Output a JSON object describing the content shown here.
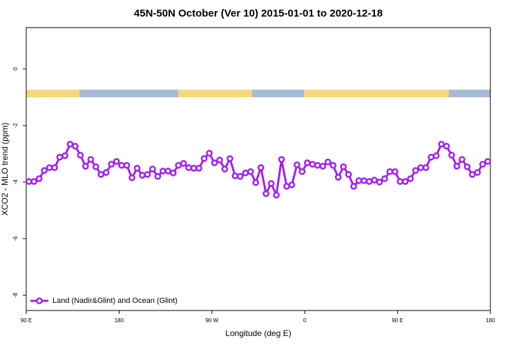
{
  "chart_data": {
    "type": "line",
    "title": "45N-50N October (Ver 10)   2015-01-01 to 2020-12-18",
    "x_label": "Longitude (deg E)",
    "y_label": "XCO2 - MLO trend (ppm)",
    "xlim": [
      90,
      540
    ],
    "xticks": [
      {
        "value": 90,
        "label": "90 E"
      },
      180,
      {
        "value": 270,
        "label": "90 W"
      },
      {
        "value": 360,
        "label": "0"
      },
      {
        "value": 450,
        "label": "90 E"
      },
      {
        "value": 540,
        "label": "180"
      }
    ],
    "ylim": [
      -8.54,
      1.46
    ],
    "yticks": [
      0,
      -2,
      -4,
      -6,
      -8
    ],
    "legend": "bottom-left",
    "x": [
      92.5,
      97.5,
      102.5,
      107.5,
      112.5,
      117.5,
      122.5,
      127.5,
      132.5,
      137.5,
      142.5,
      147.5,
      152.5,
      157.5,
      162.5,
      167.5,
      172.5,
      177.5,
      182.5,
      187.5,
      192.5,
      197.5,
      202.5,
      207.5,
      212.5,
      217.5,
      222.5,
      227.5,
      232.5,
      237.5,
      242.5,
      247.5,
      252.5,
      257.5,
      262.5,
      267.5,
      272.5,
      277.5,
      282.5,
      287.5,
      292.5,
      297.5,
      302.5,
      307.5,
      312.5,
      317.5,
      322.5,
      327.5,
      332.5,
      337.5,
      342.5,
      347.5,
      352.5,
      357.5,
      362.5,
      367.5,
      372.5,
      377.5,
      382.5,
      387.5,
      392.5,
      397.5,
      402.5,
      407.5,
      412.5,
      417.5,
      422.5,
      427.5,
      432.5,
      437.5,
      442.5,
      447.5,
      452.5,
      457.5,
      462.5,
      467.5,
      472.5,
      477.5,
      482.5,
      487.5,
      492.5,
      497.5,
      502.5,
      507.5,
      512.5,
      517.5,
      522.5,
      527.5,
      532.5,
      537.5
    ],
    "series": [
      {
        "name": "Land (Nadir&Glint) and Ocean (Glint)",
        "color": "#a020f0",
        "values": [
          -3.98,
          -3.98,
          -3.88,
          -3.59,
          -3.49,
          -3.49,
          -3.12,
          -3.07,
          -2.66,
          -2.73,
          -3.05,
          -3.44,
          -3.2,
          -3.46,
          -3.73,
          -3.66,
          -3.37,
          -3.27,
          -3.41,
          -3.41,
          -3.85,
          -3.51,
          -3.76,
          -3.73,
          -3.54,
          -3.8,
          -3.61,
          -3.61,
          -3.68,
          -3.41,
          -3.34,
          -3.49,
          -3.51,
          -3.51,
          -3.17,
          -2.98,
          -3.32,
          -3.22,
          -3.54,
          -3.17,
          -3.78,
          -3.8,
          -3.68,
          -3.63,
          -4.02,
          -3.49,
          -4.41,
          -4.05,
          -4.46,
          -3.2,
          -4.15,
          -4.1,
          -3.39,
          -3.63,
          -3.32,
          -3.37,
          -3.41,
          -3.44,
          -3.29,
          -3.41,
          -3.83,
          -3.46,
          -3.73,
          -4.15,
          -3.95,
          -3.95,
          -3.98,
          -3.93,
          -4.0,
          -3.88,
          -3.63,
          -3.63,
          -3.98,
          -3.98,
          -3.88,
          -3.59,
          -3.49,
          -3.49,
          -3.12,
          -3.07,
          -2.66,
          -2.73,
          -3.05,
          -3.44,
          -3.2,
          -3.46,
          -3.73,
          -3.66,
          -3.37,
          -3.27
        ]
      }
    ]
  }
}
